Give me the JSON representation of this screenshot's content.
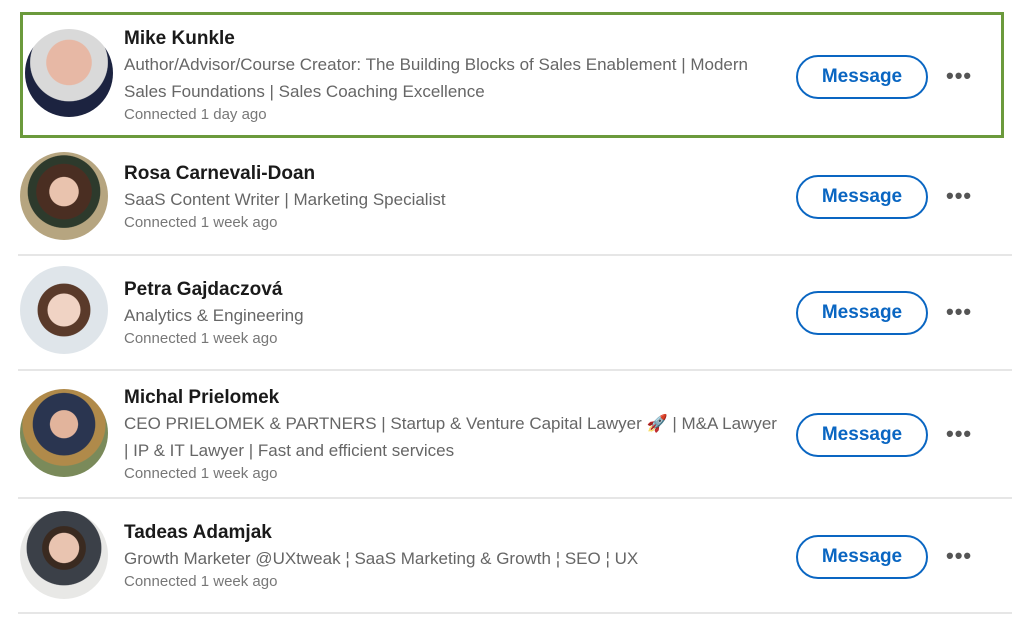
{
  "accent": "#0a66c2",
  "highlight_color": "#6b9a3c",
  "connections": [
    {
      "name": "Mike Kunkle",
      "headline": "Author/Advisor/Course Creator: The Building Blocks of Sales Enablement | Modern Sales Foundations | Sales Coaching Excellence",
      "time": "Connected 1 day ago",
      "button": "Message",
      "more_icon": "ellipsis-icon",
      "highlighted": true
    },
    {
      "name": "Rosa Carnevali-Doan",
      "headline": "SaaS Content Writer | Marketing Specialist",
      "time": "Connected 1 week ago",
      "button": "Message",
      "more_icon": "ellipsis-icon"
    },
    {
      "name": "Petra Gajdaczová",
      "headline": "Analytics & Engineering",
      "time": "Connected 1 week ago",
      "button": "Message",
      "more_icon": "ellipsis-icon"
    },
    {
      "name": "Michal Prielomek",
      "headline": "CEO PRIELOMEK & PARTNERS | Startup & Venture Capital Lawyer 🚀 | M&A Lawyer | IP & IT Lawyer | Fast and efficient services",
      "time": "Connected 1 week ago",
      "button": "Message",
      "more_icon": "ellipsis-icon"
    },
    {
      "name": "Tadeas Adamjak",
      "headline": "Growth Marketer @UXtweak ¦ SaaS Marketing & Growth ¦ SEO ¦ UX",
      "time": "Connected 1 week ago",
      "button": "Message",
      "more_icon": "ellipsis-icon"
    }
  ]
}
